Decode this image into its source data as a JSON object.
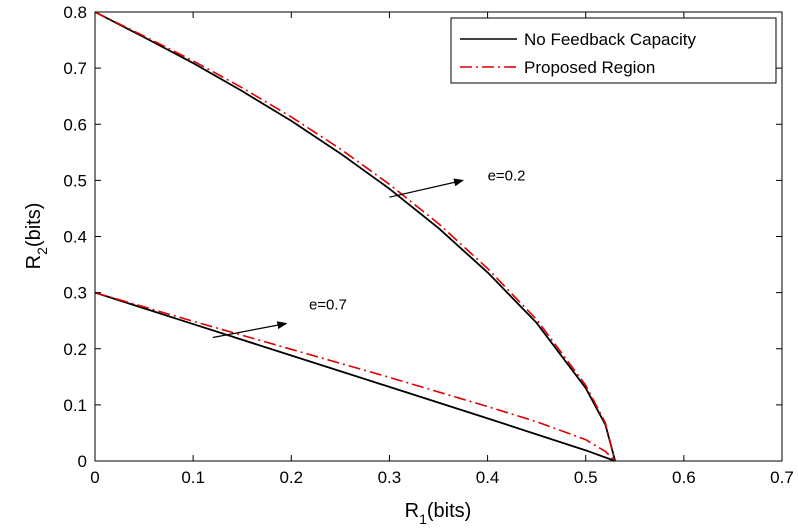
{
  "chart_data": {
    "type": "line",
    "title": "",
    "xlabel": {
      "main": "R",
      "sub": "1",
      "suffix": "(bits)"
    },
    "ylabel": {
      "main": "R",
      "sub": "2",
      "suffix": "(bits)"
    },
    "xlim": [
      0,
      0.7
    ],
    "ylim": [
      0,
      0.8
    ],
    "xticks": [
      "0",
      "0.1",
      "0.2",
      "0.3",
      "0.4",
      "0.5",
      "0.6",
      "0.7"
    ],
    "yticks": [
      "0",
      "0.1",
      "0.2",
      "0.3",
      "0.4",
      "0.5",
      "0.6",
      "0.7",
      "0.8"
    ],
    "grid": false,
    "legend_position": "top-right",
    "series": [
      {
        "name": "No Feedback Capacity",
        "color": "#000000",
        "style": "solid",
        "curves": [
          {
            "label": "e=0.2",
            "x": [
              0,
              0.05,
              0.1,
              0.15,
              0.2,
              0.25,
              0.3,
              0.35,
              0.4,
              0.45,
              0.5,
              0.52,
              0.53
            ],
            "y": [
              0.8,
              0.755,
              0.709,
              0.659,
              0.606,
              0.548,
              0.485,
              0.415,
              0.336,
              0.246,
              0.13,
              0.065,
              0
            ]
          },
          {
            "label": "e=0.7",
            "x": [
              0,
              0.1,
              0.2,
              0.3,
              0.4,
              0.5,
              0.53
            ],
            "y": [
              0.3,
              0.244,
              0.188,
              0.132,
              0.076,
              0.019,
              0
            ]
          }
        ]
      },
      {
        "name": "Proposed Region",
        "color": "#e00000",
        "style": "dashdot",
        "curves": [
          {
            "label": "e=0.2",
            "x": [
              0,
              0.05,
              0.1,
              0.15,
              0.2,
              0.25,
              0.3,
              0.35,
              0.4,
              0.45,
              0.5,
              0.52,
              0.53
            ],
            "y": [
              0.8,
              0.757,
              0.713,
              0.665,
              0.613,
              0.556,
              0.493,
              0.423,
              0.343,
              0.252,
              0.135,
              0.068,
              0
            ]
          },
          {
            "label": "e=0.7",
            "x": [
              0,
              0.1,
              0.2,
              0.3,
              0.4,
              0.45,
              0.5,
              0.52,
              0.53
            ],
            "y": [
              0.3,
              0.249,
              0.199,
              0.149,
              0.097,
              0.07,
              0.038,
              0.017,
              0
            ]
          }
        ]
      }
    ],
    "annotations": [
      {
        "text": "e=0.2",
        "x": 0.4,
        "y": 0.5,
        "arrow_from": [
          0.3,
          0.47
        ],
        "arrow_to": [
          0.375,
          0.5
        ]
      },
      {
        "text": "e=0.7",
        "x": 0.218,
        "y": 0.27,
        "arrow_from": [
          0.12,
          0.22
        ],
        "arrow_to": [
          0.195,
          0.245
        ]
      }
    ]
  }
}
